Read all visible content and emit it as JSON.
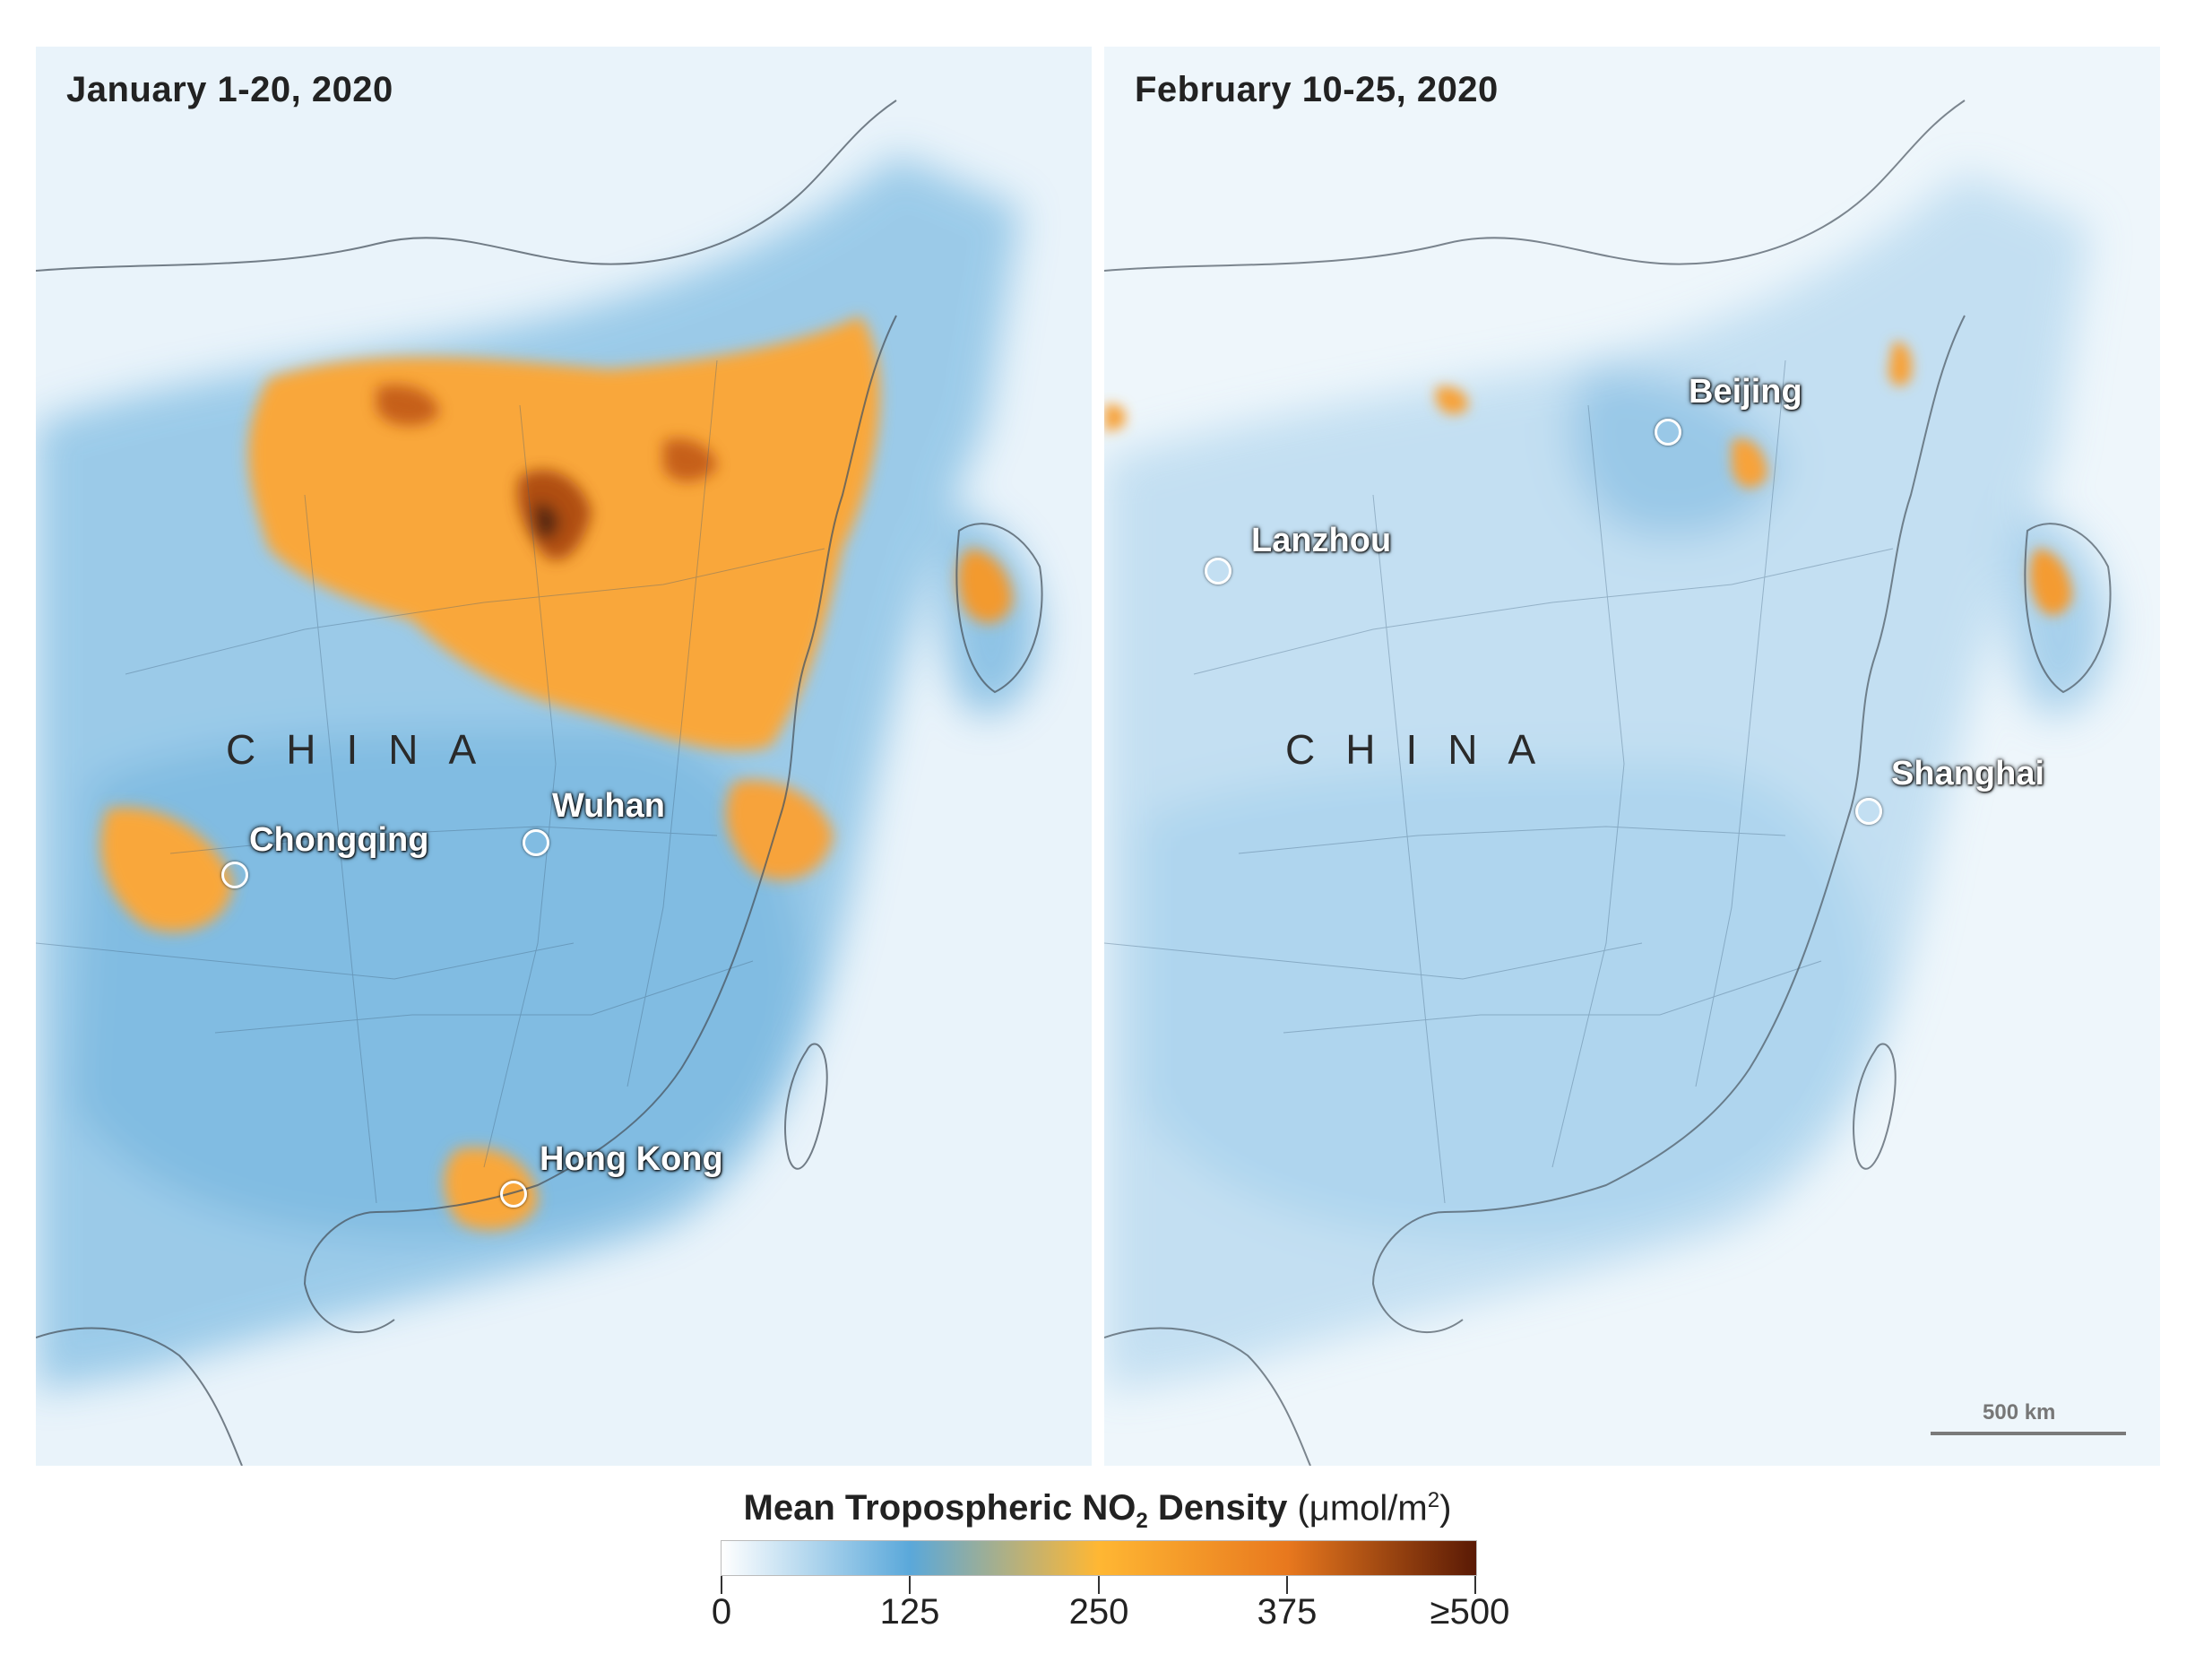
{
  "panels": [
    {
      "title": "January 1-20, 2020",
      "country_label": "CHINA",
      "cities": [
        {
          "name": "Wuhan",
          "marker": "circle-marker"
        },
        {
          "name": "Chongqing",
          "marker": "circle-marker"
        },
        {
          "name": "Hong Kong",
          "marker": "circle-marker"
        }
      ]
    },
    {
      "title": "February 10-25, 2020",
      "country_label": "CHINA",
      "cities": [
        {
          "name": "Beijing",
          "marker": "circle-marker"
        },
        {
          "name": "Lanzhou",
          "marker": "circle-marker"
        },
        {
          "name": "Shanghai",
          "marker": "circle-marker"
        }
      ],
      "scale_bar": "500 km"
    }
  ],
  "legend": {
    "title_main": "Mean Tropospheric NO",
    "title_sub": "2",
    "title_rest": " Density",
    "unit_open": " (μmol/m",
    "unit_sup": "2",
    "unit_close": ")",
    "ticks": [
      "0",
      "125",
      "250",
      "375",
      "≥500"
    ],
    "colors": [
      "#ffffff",
      "#5aa8da",
      "#ffb733",
      "#e8781e",
      "#5a1a05"
    ]
  }
}
